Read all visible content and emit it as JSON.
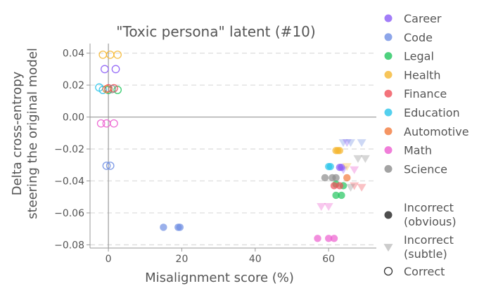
{
  "chart_data": {
    "type": "scatter",
    "title": "\"Toxic persona\" latent (#10)",
    "xlabel": "Misalignment score (%)",
    "ylabel_lines": [
      "Delta cross-entropy",
      "steering the original model"
    ],
    "xlim": [
      -5,
      73
    ],
    "ylim": [
      -0.082,
      0.046
    ],
    "xticks": [
      0,
      20,
      40,
      60
    ],
    "yticks": [
      0.04,
      0.02,
      0.0,
      -0.02,
      -0.04,
      -0.06,
      -0.08
    ],
    "ytick_labels": [
      "0.04",
      "0.02",
      "0.00",
      "−0.02",
      "−0.04",
      "−0.06",
      "−0.08"
    ],
    "grid": "horizontal dashed",
    "reference_lines": {
      "x": 0,
      "y": 0
    },
    "legend_position": "right",
    "categories": [
      {
        "name": "Career",
        "color": "#8b5cf6"
      },
      {
        "name": "Code",
        "color": "#6f8fe3"
      },
      {
        "name": "Legal",
        "color": "#22c55e"
      },
      {
        "name": "Health",
        "color": "#f5b731"
      },
      {
        "name": "Finance",
        "color": "#f0505a"
      },
      {
        "name": "Education",
        "color": "#29c4ea"
      },
      {
        "name": "Automotive",
        "color": "#f27b3c"
      },
      {
        "name": "Math",
        "color": "#ec5ecf"
      },
      {
        "name": "Science",
        "color": "#8c8c8c"
      }
    ],
    "marker_types": [
      {
        "name": "Incorrect\n(obvious)",
        "style": "filled-circle"
      },
      {
        "name": "Incorrect\n(subtle)",
        "style": "triangle"
      },
      {
        "name": "Correct",
        "style": "open-circle"
      }
    ],
    "points": [
      {
        "category": "Health",
        "marker": "Correct",
        "x": -1.5,
        "y": 0.039
      },
      {
        "category": "Health",
        "marker": "Correct",
        "x": 0.5,
        "y": 0.039
      },
      {
        "category": "Health",
        "marker": "Correct",
        "x": 2.5,
        "y": 0.039
      },
      {
        "category": "Career",
        "marker": "Correct",
        "x": -1.0,
        "y": 0.03
      },
      {
        "category": "Career",
        "marker": "Correct",
        "x": 2.0,
        "y": 0.03
      },
      {
        "category": "Education",
        "marker": "Correct",
        "x": -2.5,
        "y": 0.0185
      },
      {
        "category": "Education",
        "marker": "Correct",
        "x": -1.5,
        "y": 0.017
      },
      {
        "category": "Legal",
        "marker": "Correct",
        "x": 0.0,
        "y": 0.017
      },
      {
        "category": "Legal",
        "marker": "Correct",
        "x": 2.5,
        "y": 0.017
      },
      {
        "category": "Finance",
        "marker": "Correct",
        "x": 0.0,
        "y": 0.018
      },
      {
        "category": "Finance",
        "marker": "Correct",
        "x": 1.5,
        "y": 0.018
      },
      {
        "category": "Automotive",
        "marker": "Correct",
        "x": -0.5,
        "y": 0.0175
      },
      {
        "category": "Science",
        "marker": "Correct",
        "x": 1.0,
        "y": 0.0175
      },
      {
        "category": "Math",
        "marker": "Correct",
        "x": -2.0,
        "y": -0.004
      },
      {
        "category": "Math",
        "marker": "Correct",
        "x": -0.5,
        "y": -0.004
      },
      {
        "category": "Math",
        "marker": "Correct",
        "x": 1.5,
        "y": -0.004
      },
      {
        "category": "Code",
        "marker": "Correct",
        "x": -0.5,
        "y": -0.0305
      },
      {
        "category": "Code",
        "marker": "Correct",
        "x": 0.5,
        "y": -0.0305
      },
      {
        "category": "Code",
        "marker": "Incorrect\n(obvious)",
        "x": 15,
        "y": -0.069
      },
      {
        "category": "Code",
        "marker": "Incorrect\n(obvious)",
        "x": 19,
        "y": -0.069
      },
      {
        "category": "Code",
        "marker": "Incorrect\n(obvious)",
        "x": 19.5,
        "y": -0.069
      },
      {
        "category": "Health",
        "marker": "Incorrect\n(obvious)",
        "x": 62,
        "y": -0.021
      },
      {
        "category": "Health",
        "marker": "Incorrect\n(obvious)",
        "x": 62.5,
        "y": -0.021
      },
      {
        "category": "Health",
        "marker": "Incorrect\n(obvious)",
        "x": 63,
        "y": -0.021
      },
      {
        "category": "Education",
        "marker": "Incorrect\n(obvious)",
        "x": 60,
        "y": -0.031
      },
      {
        "category": "Education",
        "marker": "Incorrect\n(obvious)",
        "x": 60.5,
        "y": -0.031
      },
      {
        "category": "Career",
        "marker": "Incorrect\n(obvious)",
        "x": 63,
        "y": -0.0315
      },
      {
        "category": "Career",
        "marker": "Incorrect\n(obvious)",
        "x": 63.5,
        "y": -0.0315
      },
      {
        "category": "Automotive",
        "marker": "Incorrect\n(obvious)",
        "x": 65,
        "y": -0.038
      },
      {
        "category": "Science",
        "marker": "Incorrect\n(obvious)",
        "x": 59,
        "y": -0.038
      },
      {
        "category": "Science",
        "marker": "Incorrect\n(obvious)",
        "x": 61,
        "y": -0.038
      },
      {
        "category": "Science",
        "marker": "Incorrect\n(obvious)",
        "x": 62,
        "y": -0.038
      },
      {
        "category": "Legal",
        "marker": "Incorrect\n(obvious)",
        "x": 62,
        "y": -0.042
      },
      {
        "category": "Legal",
        "marker": "Incorrect\n(obvious)",
        "x": 64,
        "y": -0.043
      },
      {
        "category": "Legal",
        "marker": "Incorrect\n(obvious)",
        "x": 62,
        "y": -0.049
      },
      {
        "category": "Legal",
        "marker": "Incorrect\n(obvious)",
        "x": 63.5,
        "y": -0.049
      },
      {
        "category": "Finance",
        "marker": "Incorrect\n(obvious)",
        "x": 61.5,
        "y": -0.043
      },
      {
        "category": "Finance",
        "marker": "Incorrect\n(obvious)",
        "x": 63,
        "y": -0.043
      },
      {
        "category": "Math",
        "marker": "Incorrect\n(obvious)",
        "x": 57,
        "y": -0.076
      },
      {
        "category": "Math",
        "marker": "Incorrect\n(obvious)",
        "x": 60,
        "y": -0.076
      },
      {
        "category": "Math",
        "marker": "Incorrect\n(obvious)",
        "x": 61.5,
        "y": -0.076
      },
      {
        "category": "Code",
        "marker": "Incorrect\n(subtle)",
        "x": 64,
        "y": -0.016
      },
      {
        "category": "Career",
        "marker": "Incorrect\n(subtle)",
        "x": 65,
        "y": -0.016
      },
      {
        "category": "Code",
        "marker": "Incorrect\n(subtle)",
        "x": 66,
        "y": -0.016
      },
      {
        "category": "Code",
        "marker": "Incorrect\n(subtle)",
        "x": 69,
        "y": -0.016
      },
      {
        "category": "Science",
        "marker": "Incorrect\n(subtle)",
        "x": 68,
        "y": -0.026
      },
      {
        "category": "Science",
        "marker": "Incorrect\n(subtle)",
        "x": 70,
        "y": -0.026
      },
      {
        "category": "Career",
        "marker": "Incorrect\n(subtle)",
        "x": 64,
        "y": -0.033
      },
      {
        "category": "Math",
        "marker": "Incorrect\n(subtle)",
        "x": 67,
        "y": -0.033
      },
      {
        "category": "Health",
        "marker": "Incorrect\n(subtle)",
        "x": 65,
        "y": -0.031
      },
      {
        "category": "Finance",
        "marker": "Incorrect\n(subtle)",
        "x": 67,
        "y": -0.043
      },
      {
        "category": "Finance",
        "marker": "Incorrect\n(subtle)",
        "x": 69,
        "y": -0.044
      },
      {
        "category": "Science",
        "marker": "Incorrect\n(subtle)",
        "x": 66,
        "y": -0.044
      },
      {
        "category": "Math",
        "marker": "Incorrect\n(subtle)",
        "x": 58,
        "y": -0.056
      },
      {
        "category": "Math",
        "marker": "Incorrect\n(subtle)",
        "x": 60,
        "y": -0.056
      }
    ]
  }
}
